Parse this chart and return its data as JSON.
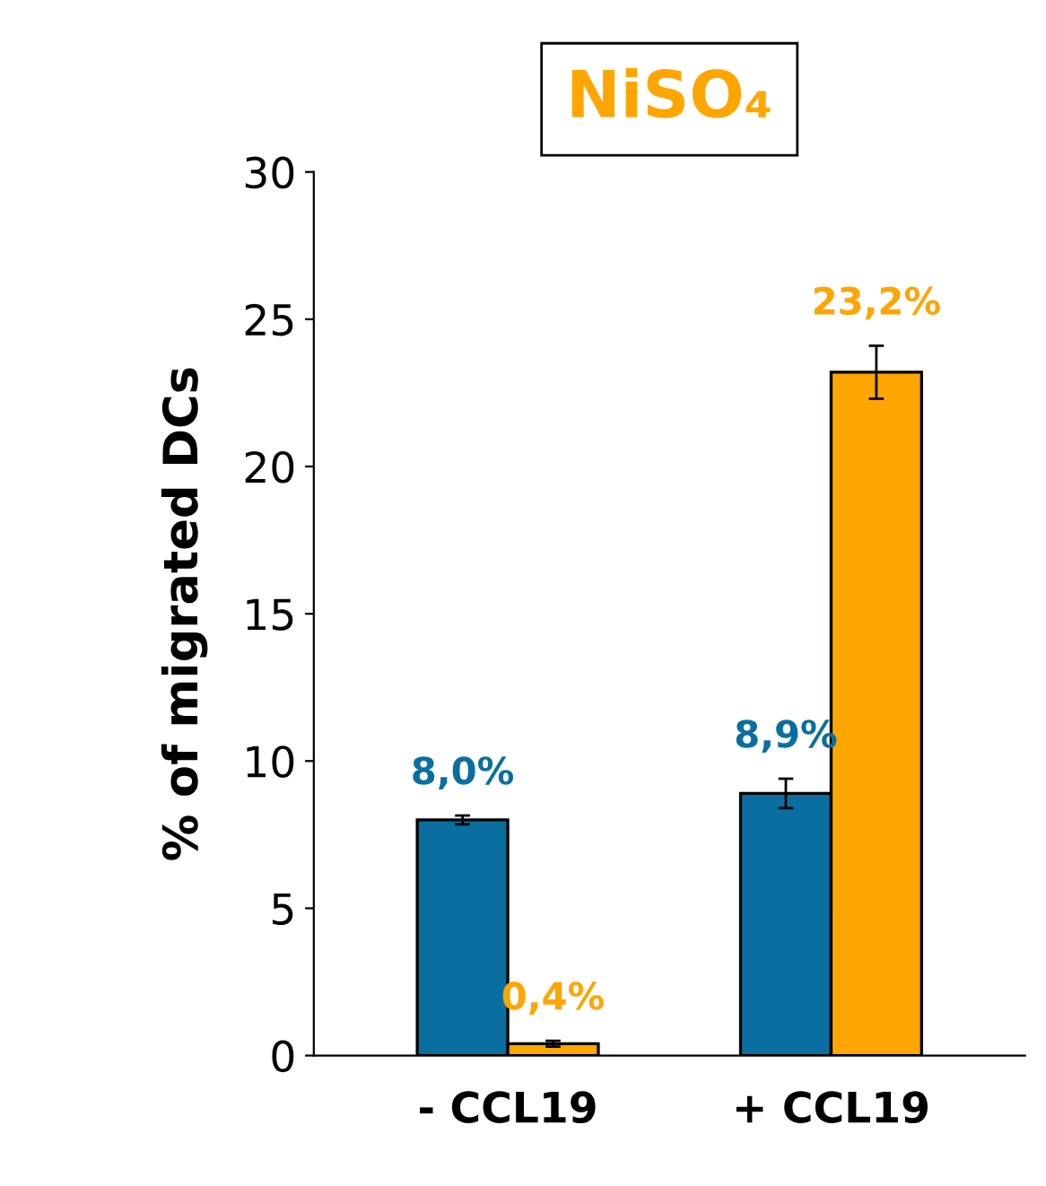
{
  "chart_data": {
    "type": "bar",
    "title": "NiSO₄",
    "ylabel": "% of migrated DCs",
    "categories": [
      "- CCL19",
      "+ CCL19"
    ],
    "series": [
      {
        "color": "#0a6fa0",
        "values": [
          8.0,
          8.9
        ],
        "errors": [
          0.15,
          0.5
        ],
        "value_labels": [
          "8,0%",
          "8,9%"
        ]
      },
      {
        "color": "#ffa500",
        "values": [
          0.4,
          23.2
        ],
        "errors": [
          0.1,
          0.9
        ],
        "value_labels": [
          "0,4%",
          "23,2%"
        ]
      }
    ],
    "ylim": [
      0,
      30
    ],
    "yticks": [
      0,
      5,
      10,
      15,
      20,
      25,
      30
    ],
    "grid": false,
    "legend": false
  }
}
